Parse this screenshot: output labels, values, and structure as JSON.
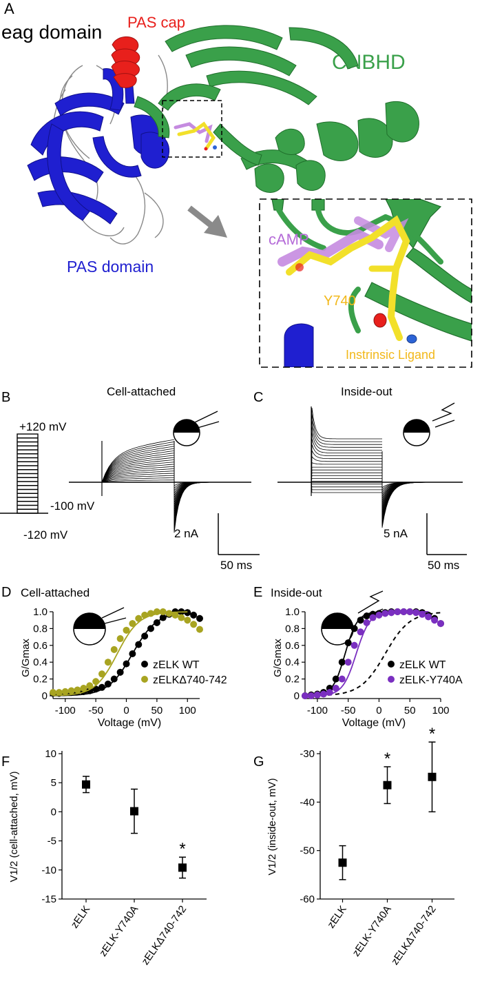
{
  "panel_letters": [
    "A",
    "B",
    "C",
    "D",
    "E",
    "F",
    "G"
  ],
  "structure": {
    "labels": {
      "eag_domain": "eag domain",
      "pas_cap": "PAS cap",
      "cnbhd": "CNBHD",
      "pas_domain": "PAS domain",
      "camp": "cAMP",
      "y740": "Y740",
      "intrinsic_ligand": "Instrinsic Ligand"
    },
    "colors": {
      "pas_domain": "#1f1fd0",
      "pas_cap": "#e8201c",
      "cnbhd": "#3aa04a",
      "camp": "#c58be0",
      "ligand": "#f2e02a",
      "arrow": "#8a8a8a"
    }
  },
  "traces": {
    "B": {
      "title": "Cell-attached",
      "protocol": {
        "top": "+120 mV",
        "hold": "-100 mV",
        "bottom": "-120 mV"
      },
      "scale_current": "2 nA",
      "scale_time": "50 ms"
    },
    "C": {
      "title": "Inside-out",
      "scale_current": "5 nA",
      "scale_time": "50 ms"
    }
  },
  "chart_data": [
    {
      "panel": "D",
      "type": "scatter",
      "title": "Cell-attached",
      "xlabel": "Voltage (mV)",
      "ylabel": "G/Gmax",
      "xlim": [
        -120,
        120
      ],
      "ylim": [
        0,
        1.0
      ],
      "xticks": [
        "-100",
        "-50",
        "0",
        "50",
        "100"
      ],
      "yticks": [
        "0",
        "0.2",
        "0.4",
        "0.6",
        "0.8",
        "1.0"
      ],
      "x": [
        -120,
        -110,
        -100,
        -90,
        -80,
        -70,
        -60,
        -50,
        -40,
        -30,
        -20,
        -10,
        0,
        10,
        20,
        30,
        40,
        50,
        60,
        70,
        80,
        90,
        100,
        110,
        120
      ],
      "series": [
        {
          "name": "zELK WT",
          "color": "#000000",
          "values": [
            0.03,
            0.03,
            0.04,
            0.04,
            0.05,
            0.05,
            0.06,
            0.08,
            0.1,
            0.14,
            0.2,
            0.28,
            0.38,
            0.5,
            0.61,
            0.71,
            0.8,
            0.87,
            0.93,
            0.97,
            1.0,
            1.0,
            0.99,
            0.96,
            0.92
          ],
          "fit_midpoint": 10,
          "fit_slope": 20
        },
        {
          "name": "zELKΔ740-742",
          "color": "#a8a421",
          "values": [
            0.04,
            0.04,
            0.05,
            0.06,
            0.07,
            0.09,
            0.12,
            0.17,
            0.26,
            0.4,
            0.55,
            0.68,
            0.78,
            0.86,
            0.92,
            0.96,
            0.98,
            1.0,
            1.0,
            0.98,
            0.96,
            0.93,
            0.9,
            0.85,
            0.79
          ],
          "fit_midpoint": -15,
          "fit_slope": 18
        }
      ]
    },
    {
      "panel": "E",
      "type": "scatter",
      "title": "Inside-out",
      "xlabel": "Voltage (mV)",
      "ylabel": "G/Gmax",
      "xlim": [
        -120,
        100
      ],
      "ylim": [
        0,
        1.0
      ],
      "xticks": [
        "-100",
        "-50",
        "0",
        "50",
        "100"
      ],
      "yticks": [
        "0",
        "0.2",
        "0.4",
        "0.6",
        "0.8",
        "1.0"
      ],
      "x": [
        -120,
        -110,
        -100,
        -90,
        -80,
        -70,
        -60,
        -50,
        -40,
        -30,
        -20,
        -10,
        0,
        10,
        20,
        30,
        40,
        50,
        60,
        70,
        80,
        90,
        100
      ],
      "series": [
        {
          "name": "zELK WT",
          "color": "#000000",
          "values": [
            0.0,
            0.01,
            0.02,
            0.04,
            0.09,
            0.2,
            0.4,
            0.63,
            0.8,
            0.9,
            0.95,
            0.97,
            0.98,
            0.99,
            1.0,
            1.0,
            1.0,
            1.0,
            1.0,
            0.99,
            0.96,
            0.92,
            0.86
          ],
          "fit_midpoint": -55,
          "fit_slope": 10
        },
        {
          "name": "zELK-Y740A",
          "color": "#7a2fc0",
          "values": [
            0.0,
            0.0,
            0.01,
            0.02,
            0.04,
            0.09,
            0.2,
            0.4,
            0.6,
            0.76,
            0.87,
            0.93,
            0.96,
            0.98,
            0.99,
            1.0,
            1.0,
            1.0,
            0.99,
            0.97,
            0.94,
            0.9,
            0.86
          ],
          "fit_midpoint": -37,
          "fit_slope": 11
        }
      ],
      "reference_curve": {
        "style": "dashed",
        "fit_midpoint": 10,
        "fit_slope": 20
      }
    },
    {
      "panel": "F",
      "type": "scatter",
      "ylabel": "V1/2 (cell-attached, mV)",
      "categories": [
        "zELK",
        "zELK-Y740A",
        "zELKΔ740-742"
      ],
      "values": [
        4.7,
        0.1,
        -9.6
      ],
      "errors": [
        1.4,
        3.8,
        1.8
      ],
      "significant": [
        false,
        false,
        true
      ],
      "ylim": [
        -15,
        10
      ],
      "yticks": [
        "10",
        "5",
        "0",
        "-5",
        "-10",
        "-15"
      ]
    },
    {
      "panel": "G",
      "type": "scatter",
      "ylabel": "V1/2 (inside-out, mV)",
      "categories": [
        "zELK",
        "zELK-Y740A",
        "zELKΔ740-742"
      ],
      "values": [
        -52.5,
        -36.5,
        -34.8
      ],
      "errors": [
        3.5,
        3.8,
        7.2
      ],
      "significant": [
        false,
        true,
        true
      ],
      "ylim": [
        -60,
        -30
      ],
      "yticks": [
        "-30",
        "-40",
        "-50",
        "-60"
      ]
    }
  ],
  "significance_mark": "*"
}
